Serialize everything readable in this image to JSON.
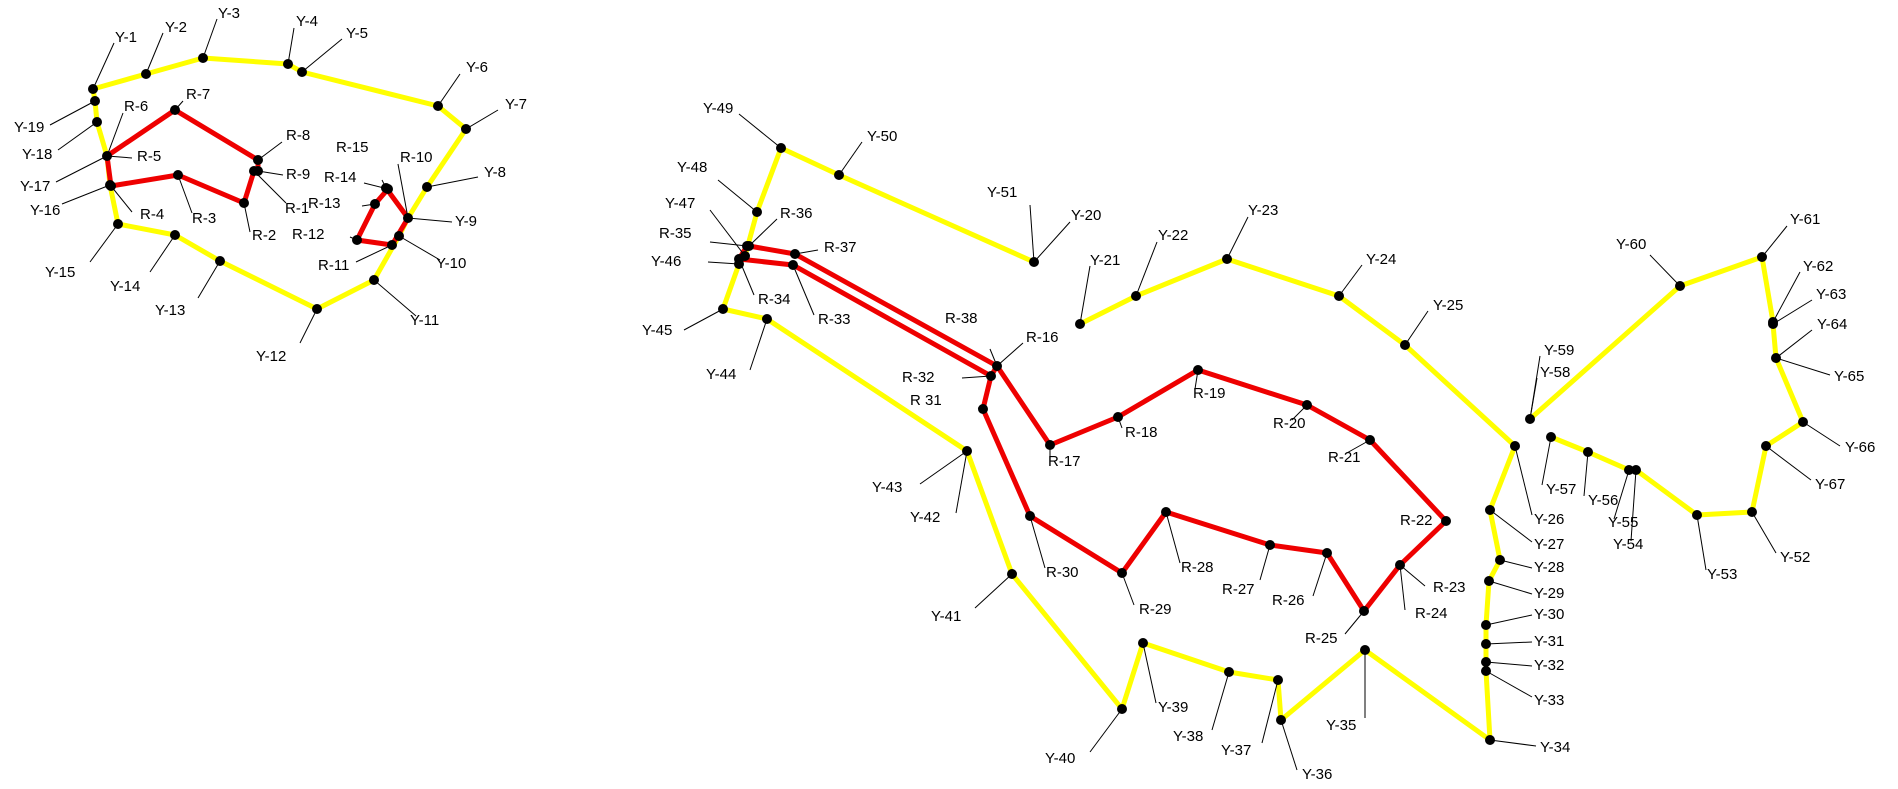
{
  "style": {
    "yellow_line": "#ffff00",
    "red_line": "#ee0000",
    "node_fill": "#000000",
    "leader_line": "#000000",
    "background": "#ffffff"
  },
  "diagrams": [
    {
      "yellow_loop": [
        "Y-1",
        "Y-2",
        "Y-3",
        "Y-4",
        "Y-5",
        "Y-6",
        "Y-7",
        "Y-8",
        "Y-9",
        "Y-10",
        "Y-11",
        "Y-12",
        "Y-13",
        "Y-14",
        "Y-15",
        "Y-16",
        "Y-17",
        "Y-18",
        "Y-19"
      ],
      "red_loops": [
        [
          "R-1",
          "R-2",
          "R-3",
          "R-4",
          "R-5",
          "R-6",
          "R-7",
          "R-8",
          "R-9"
        ],
        [
          "R-10",
          "R-11",
          "R-12",
          "R-13",
          "R-14",
          "R-15"
        ]
      ]
    },
    {
      "yellow_paths": [
        [
          "Y-20",
          "Y-51",
          "Y-50",
          "Y-49",
          "Y-48",
          "Y-47",
          "Y-46",
          "Y-45",
          "Y-44",
          "Y-43",
          "Y-42",
          "Y-41",
          "Y-40",
          "Y-39",
          "Y-38",
          "Y-37",
          "Y-36",
          "Y-35",
          "Y-34",
          "Y-33",
          "Y-32",
          "Y-31",
          "Y-30",
          "Y-29",
          "Y-28",
          "Y-27",
          "Y-26",
          "Y-25",
          "Y-24",
          "Y-23",
          "Y-22",
          "Y-21"
        ],
        [
          "Y-57",
          "Y-56",
          "Y-55",
          "Y-54",
          "Y-53",
          "Y-52",
          "Y-67",
          "Y-66",
          "Y-65",
          "Y-64",
          "Y-63",
          "Y-62",
          "Y-61",
          "Y-60",
          "Y-59",
          "Y-58"
        ]
      ],
      "red_loop": [
        "R-16",
        "R-17",
        "R-18",
        "R-19",
        "R-20",
        "R-21",
        "R-22",
        "R-23",
        "R-24",
        "R-25",
        "R-26",
        "R-27",
        "R-28",
        "R-29",
        "R-30",
        "R 31",
        "R-32"
      ],
      "red_spurs": [
        [
          "R-32",
          "R-33",
          "R-34",
          "R-35",
          "R-36",
          "R-37",
          "R-38"
        ]
      ]
    }
  ],
  "labels": {
    "Y-1": "Y-1",
    "Y-2": "Y-2",
    "Y-3": "Y-3",
    "Y-4": "Y-4",
    "Y-5": "Y-5",
    "Y-6": "Y-6",
    "Y-7": "Y-7",
    "Y-8": "Y-8",
    "Y-9": "Y-9",
    "Y-10": "Y-10",
    "Y-11": "Y-11",
    "Y-12": "Y-12",
    "Y-13": "Y-13",
    "Y-14": "Y-14",
    "Y-15": "Y-15",
    "Y-16": "Y-16",
    "Y-17": "Y-17",
    "Y-18": "Y-18",
    "Y-19": "Y-19",
    "R-1": "R-1",
    "R-2": "R-2",
    "R-3": "R-3",
    "R-4": "R-4",
    "R-5": "R-5",
    "R-6": "R-6",
    "R-7": "R-7",
    "R-8": "R-8",
    "R-9": "R-9",
    "R-10": "R-10",
    "R-11": "R-11",
    "R-12": "R-12",
    "R-13": "R-13",
    "R-14": "R-14",
    "R-15": "R-15",
    "Y-20": "Y-20",
    "Y-21": "Y-21",
    "Y-22": "Y-22",
    "Y-23": "Y-23",
    "Y-24": "Y-24",
    "Y-25": "Y-25",
    "Y-26": "Y-26",
    "Y-27": "Y-27",
    "Y-28": "Y-28",
    "Y-29": "Y-29",
    "Y-30": "Y-30",
    "Y-31": "Y-31",
    "Y-32": "Y-32",
    "Y-33": "Y-33",
    "Y-34": "Y-34",
    "Y-35": "Y-35",
    "Y-36": "Y-36",
    "Y-37": "Y-37",
    "Y-38": "Y-38",
    "Y-39": "Y-39",
    "Y-40": "Y-40",
    "Y-41": "Y-41",
    "Y-42": "Y-42",
    "Y-43": "Y-43",
    "Y-44": "Y-44",
    "Y-45": "Y-45",
    "Y-46": "Y-46",
    "Y-47": "Y-47",
    "Y-48": "Y-48",
    "Y-49": "Y-49",
    "Y-50": "Y-50",
    "Y-51": "Y-51",
    "Y-52": "Y-52",
    "Y-53": "Y-53",
    "Y-54": "Y-54",
    "Y-55": "Y-55",
    "Y-56": "Y-56",
    "Y-57": "Y-57",
    "Y-58": "Y-58",
    "Y-59": "Y-59",
    "Y-60": "Y-60",
    "Y-61": "Y-61",
    "Y-62": "Y-62",
    "Y-63": "Y-63",
    "Y-64": "Y-64",
    "Y-65": "Y-65",
    "Y-66": "Y-66",
    "Y-67": "Y-67",
    "R-16": "R-16",
    "R-17": "R-17",
    "R-18": "R-18",
    "R-19": "R-19",
    "R-20": "R-20",
    "R-21": "R-21",
    "R-22": "R-22",
    "R-23": "R-23",
    "R-24": "R-24",
    "R-25": "R-25",
    "R-26": "R-26",
    "R-27": "R-27",
    "R-28": "R-28",
    "R-29": "R-29",
    "R-30": "R-30",
    "R 31": "R 31",
    "R-32": "R-32",
    "R-33": "R-33",
    "R-34": "R-34",
    "R-35": "R-35",
    "R-36": "R-36",
    "R-37": "R-37",
    "R-38": "R-38"
  }
}
